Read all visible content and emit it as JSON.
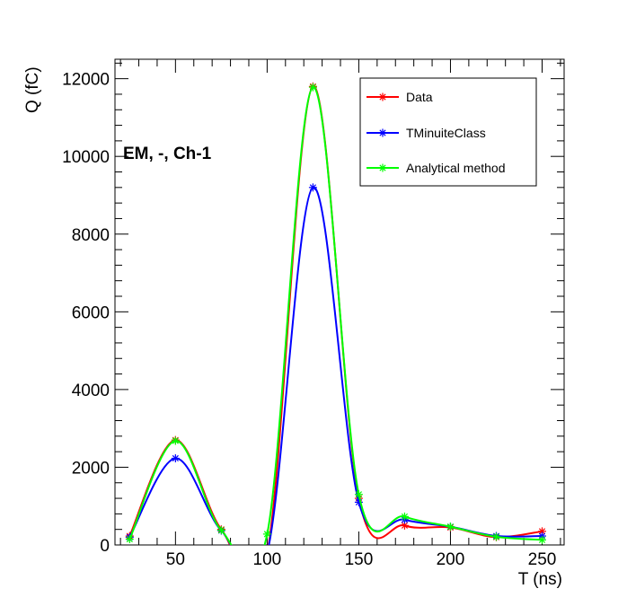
{
  "chart_data": {
    "type": "line",
    "title": "",
    "annotation": "EM, -, Ch-1",
    "xlabel": "T (ns)",
    "ylabel": "Q (fC)",
    "xlim": [
      17,
      262
    ],
    "ylim": [
      0,
      12500
    ],
    "x_ticks": [
      50,
      100,
      150,
      200,
      250
    ],
    "y_ticks": [
      0,
      2000,
      4000,
      6000,
      8000,
      10000,
      12000
    ],
    "x_tick_labels": [
      "50",
      "100",
      "150",
      "200",
      "250"
    ],
    "y_tick_labels": [
      "0",
      "2000",
      "4000",
      "6000",
      "8000",
      "10000",
      "12000"
    ],
    "grid": false,
    "legend_position": "top-right",
    "x": [
      25,
      50,
      75,
      100,
      125,
      150,
      175,
      200,
      225,
      250
    ],
    "series": [
      {
        "name": "Data",
        "color": "#ff0000",
        "values": [
          230,
          2700,
          400,
          -200,
          11800,
          1200,
          500,
          450,
          200,
          350
        ]
      },
      {
        "name": "TMinuiteClass",
        "color": "#0000ff",
        "values": [
          200,
          2230,
          370,
          -200,
          9200,
          1100,
          650,
          470,
          230,
          230
        ]
      },
      {
        "name": "Analytical method",
        "color": "#00ff00",
        "values": [
          150,
          2680,
          380,
          280,
          11780,
          1300,
          730,
          470,
          210,
          130
        ]
      }
    ]
  }
}
